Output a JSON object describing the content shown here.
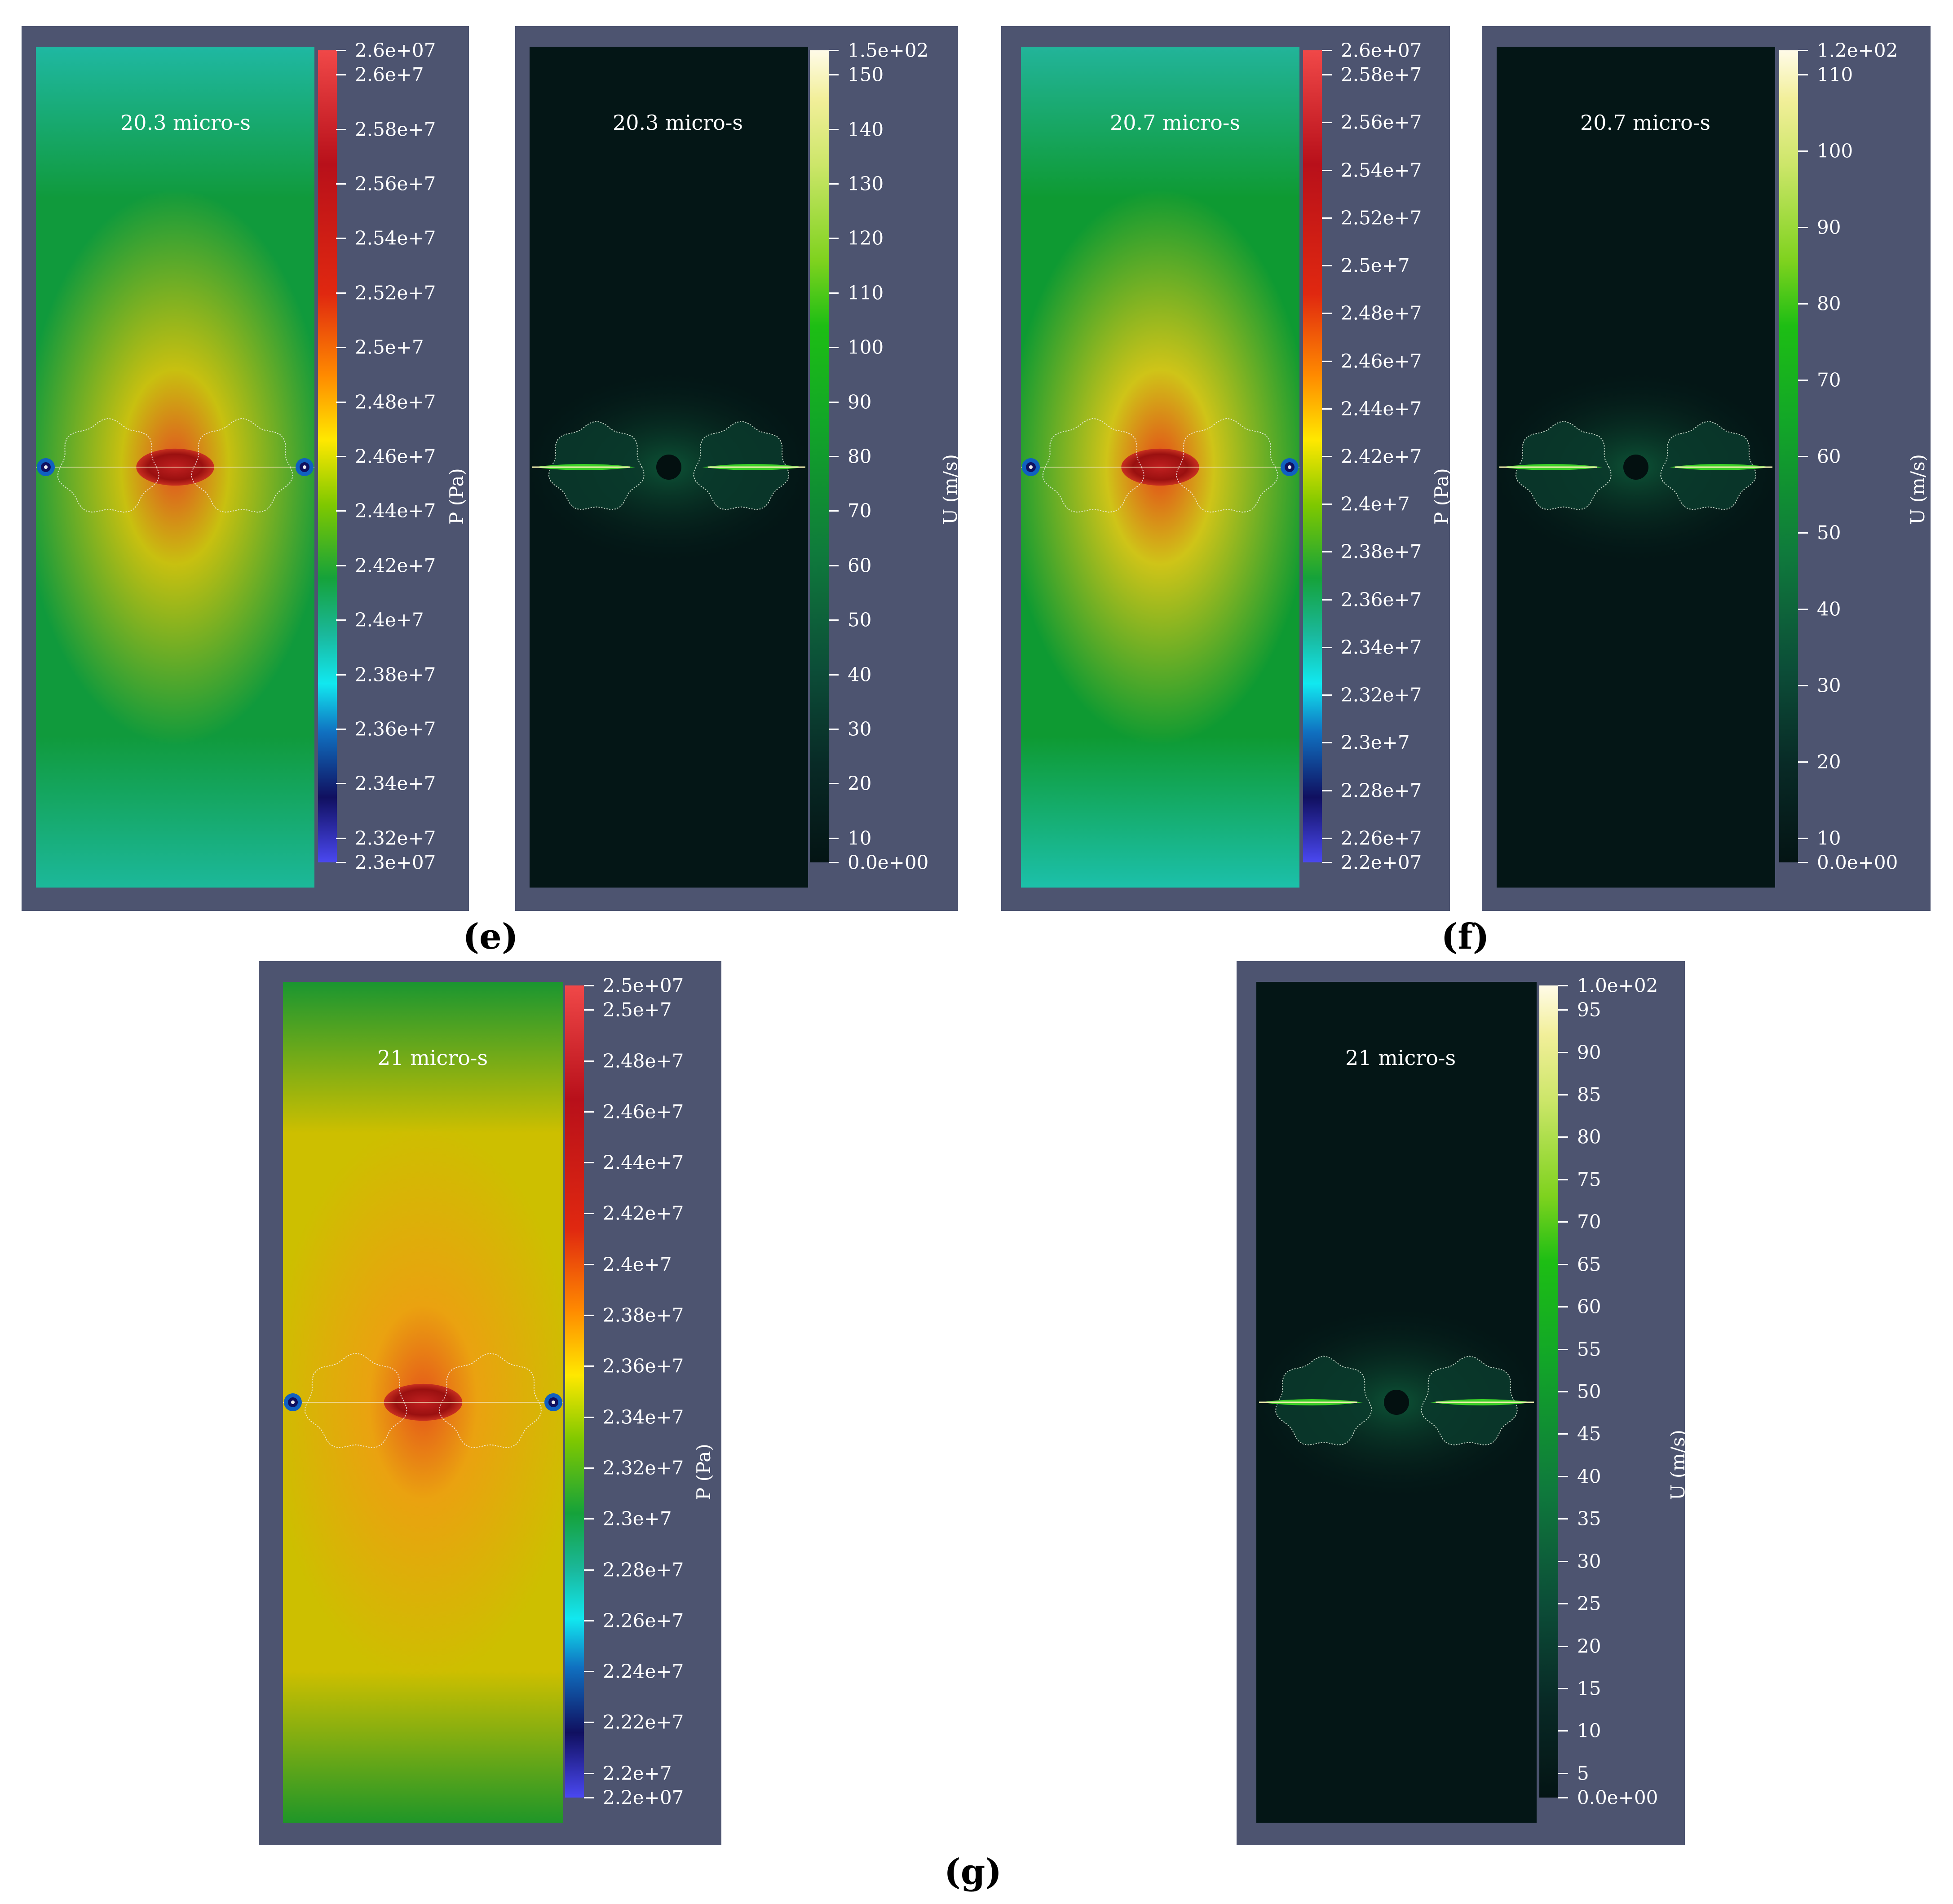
{
  "captions": {
    "e": "(e)",
    "f": "(f)",
    "g": "(g)"
  },
  "colors": {
    "panel_bg": "#4d5470",
    "u_bg": "#041616"
  },
  "panels": [
    {
      "id": "e-pressure",
      "kind": "pressure",
      "time": "20.3 micro-s",
      "quantity": "P (Pa)",
      "field": {
        "bg": "#109a3c",
        "top": "#1fb8a2",
        "bottom": "#1cb89a",
        "mid": "#c8c010",
        "core": "#e25020"
      },
      "cbar_labels": [
        "2.6e+07",
        "2.6e+7",
        "2.58e+7",
        "2.56e+7",
        "2.54e+7",
        "2.52e+7",
        "2.5e+7",
        "2.48e+7",
        "2.46e+7",
        "2.44e+7",
        "2.42e+7",
        "2.4e+7",
        "2.38e+7",
        "2.36e+7",
        "2.34e+7",
        "2.32e+7",
        "2.3e+07"
      ]
    },
    {
      "id": "e-velocity",
      "kind": "velocity",
      "time": "20.3 micro-s",
      "quantity": "U (m/s)",
      "cbar_labels": [
        "1.5e+02",
        "150",
        "140",
        "130",
        "120",
        "110",
        "100",
        "90",
        "80",
        "70",
        "60",
        "50",
        "40",
        "30",
        "20",
        "10",
        "0.0e+00"
      ]
    },
    {
      "id": "f-pressure",
      "kind": "pressure",
      "time": "20.7 micro-s",
      "quantity": "P (Pa)",
      "field": {
        "bg": "#0e9a32",
        "top": "#22b49a",
        "bottom": "#1cc0aa",
        "mid": "#cfc418",
        "core": "#e44a18"
      },
      "cbar_labels": [
        "2.6e+07",
        "2.58e+7",
        "2.56e+7",
        "2.54e+7",
        "2.52e+7",
        "2.5e+7",
        "2.48e+7",
        "2.46e+7",
        "2.44e+7",
        "2.42e+7",
        "2.4e+7",
        "2.38e+7",
        "2.36e+7",
        "2.34e+7",
        "2.32e+7",
        "2.3e+7",
        "2.28e+7",
        "2.26e+7",
        "2.2e+07"
      ]
    },
    {
      "id": "f-velocity",
      "kind": "velocity",
      "time": "20.7 micro-s",
      "quantity": "U (m/s)",
      "cbar_labels": [
        "1.2e+02",
        "110",
        "100",
        "90",
        "80",
        "70",
        "60",
        "50",
        "40",
        "30",
        "20",
        "10",
        "0.0e+00"
      ]
    },
    {
      "id": "g-pressure",
      "kind": "pressure",
      "time": "21 micro-s",
      "quantity": "P (Pa)",
      "field": {
        "bg": "#cdbf00",
        "top": "#1a9630",
        "bottom": "#1f9628",
        "mid": "#eaa210",
        "core": "#e5561a"
      },
      "cbar_labels": [
        "2.5e+07",
        "2.5e+7",
        "2.48e+7",
        "2.46e+7",
        "2.44e+7",
        "2.42e+7",
        "2.4e+7",
        "2.38e+7",
        "2.36e+7",
        "2.34e+7",
        "2.32e+7",
        "2.3e+7",
        "2.28e+7",
        "2.26e+7",
        "2.24e+7",
        "2.22e+7",
        "2.2e+7",
        "2.2e+07"
      ]
    },
    {
      "id": "g-velocity",
      "kind": "velocity",
      "time": "21 micro-s",
      "quantity": "U (m/s)",
      "cbar_labels": [
        "1.0e+02",
        "95",
        "90",
        "85",
        "80",
        "75",
        "70",
        "65",
        "60",
        "55",
        "50",
        "45",
        "40",
        "35",
        "30",
        "25",
        "20",
        "15",
        "10",
        "5",
        "0.0e+00"
      ]
    }
  ]
}
